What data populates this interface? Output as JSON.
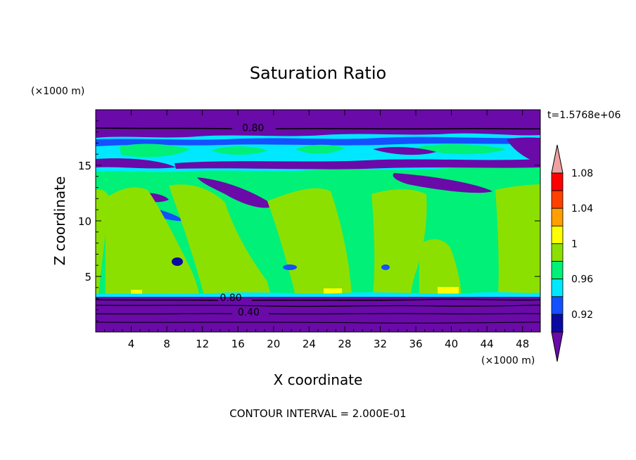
{
  "chart_data": {
    "type": "heatmap",
    "title": "Saturation Ratio",
    "xlabel": "X coordinate",
    "ylabel": "Z coordinate",
    "x_unit": "(×1000 m)",
    "y_unit": "(×1000 m)",
    "xlim": [
      0,
      50
    ],
    "ylim": [
      0,
      20
    ],
    "x_ticks": [
      4,
      8,
      12,
      16,
      20,
      24,
      28,
      32,
      36,
      40,
      44,
      48
    ],
    "y_ticks": [
      5,
      10,
      15
    ],
    "time_label": "t=1.5768e+06",
    "footer": "CONTOUR INTERVAL = 2.000E-01",
    "colorbar": {
      "levels": [
        0.92,
        0.96,
        1,
        1.04,
        1.08
      ],
      "labels": [
        "0.92",
        "0.96",
        "1",
        "1.04",
        "1.08"
      ],
      "colors": [
        "#6a0aa8",
        "#0a0aa0",
        "#1450ff",
        "#00e8ff",
        "#00f078",
        "#8ce000",
        "#ffff00",
        "#ffa000",
        "#ff4000",
        "#ff0000",
        "#f0a0a0"
      ]
    },
    "contour_labels": [
      {
        "text": "0.80",
        "x": 17.7,
        "z": 18.4
      },
      {
        "text": "0.80",
        "x": 15.2,
        "z": 3.1
      },
      {
        "text": "0.40",
        "x": 17.2,
        "z": 1.8
      }
    ],
    "regions": [
      {
        "zmin": 0,
        "zmax": 3.4,
        "value": "< 0.90",
        "color": "#6a0aa8"
      },
      {
        "zmin": 3.4,
        "zmax": 14.8,
        "value": "0.98 - 1.00",
        "color": "#00f078"
      },
      {
        "zmin": 14.8,
        "zmax": 17.8,
        "value": "0.92 - 0.98",
        "color": "#00e8ff"
      },
      {
        "zmin": 17.8,
        "zmax": 20,
        "value": "< 0.90",
        "color": "#6a0aa8"
      }
    ]
  }
}
